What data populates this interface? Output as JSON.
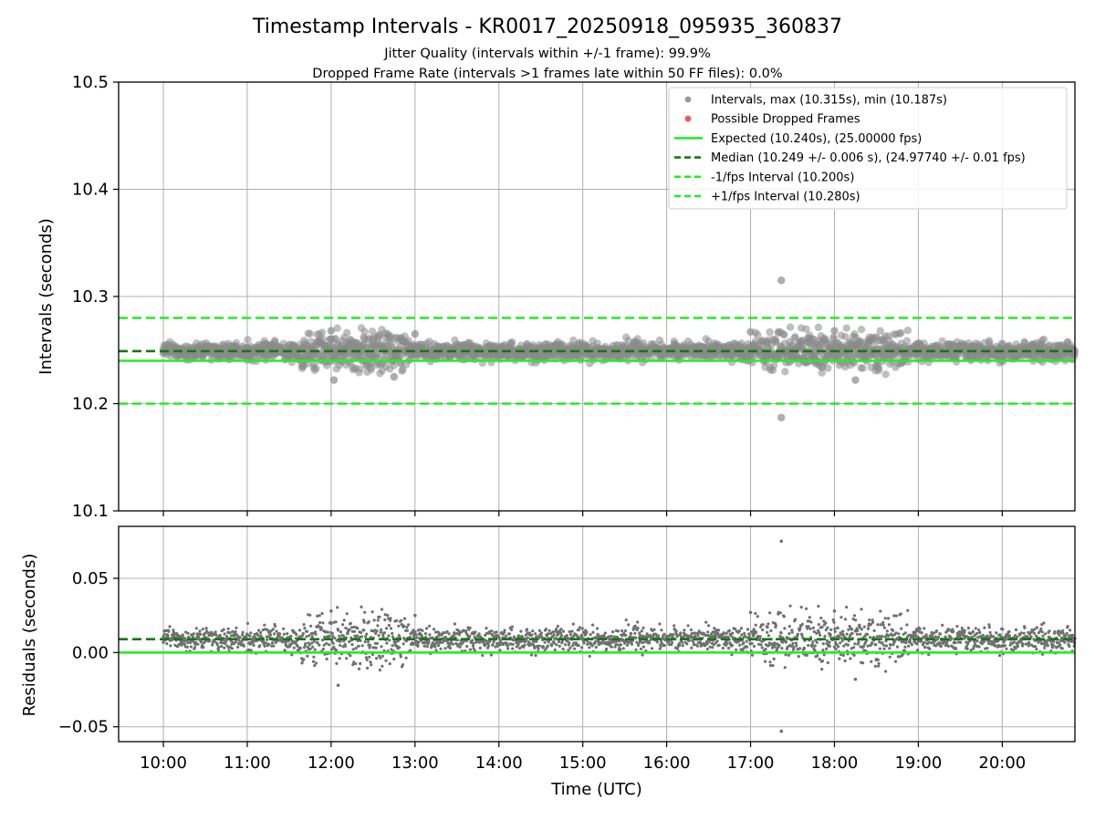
{
  "header": {
    "title": "Timestamp Intervals - KR0017_20250918_095935_360837",
    "subtitle_1": "Jitter Quality (intervals within +/-1 frame): 99.9%",
    "subtitle_2": "Dropped Frame Rate (intervals >1 frames late within 50 FF files): 0.0%"
  },
  "top_axis": {
    "ylabel": "Intervals (seconds)",
    "ylim": [
      10.1,
      10.5
    ],
    "yticks": [
      "10.1",
      "10.2",
      "10.3",
      "10.4",
      "10.5"
    ]
  },
  "bottom_axis": {
    "ylabel": "Residuals (seconds)",
    "ylim": [
      -0.06,
      0.085
    ],
    "yticks": [
      "−0.05",
      "0.00",
      "0.05"
    ],
    "xlabel": "Time (UTC)"
  },
  "xaxis": {
    "xlim": [
      "09:28",
      "20:52"
    ],
    "xticks": [
      "10:00",
      "11:00",
      "12:00",
      "13:00",
      "14:00",
      "15:00",
      "16:00",
      "17:00",
      "18:00",
      "19:00",
      "20:00"
    ]
  },
  "legend": {
    "placement": "upper right",
    "entries": [
      {
        "label": "Intervals, max (10.315s), min (10.187s)",
        "marker": "dot",
        "color": "#9a9a9a"
      },
      {
        "label": "Possible Dropped Frames",
        "marker": "dot",
        "color": "#ee5a5a"
      },
      {
        "label": "Expected (10.240s), (25.00000 fps)",
        "marker": "solid",
        "color": "#22ee22"
      },
      {
        "label": "Median (10.249 +/- 0.006 s), (24.97740 +/- 0.01 fps)",
        "marker": "dashed",
        "color": "#127a12"
      },
      {
        "label": "-1/fps Interval (10.200s)",
        "marker": "dashed",
        "color": "#22ee22"
      },
      {
        "label": "+1/fps Interval (10.280s)",
        "marker": "dashed",
        "color": "#22ee22"
      }
    ]
  },
  "colors": {
    "intervals": "#8a8a8a",
    "residuals": "#707070",
    "expected": "#22ee22",
    "median": "#127a12",
    "grid": "#b0b0b0"
  },
  "chart_data": {
    "type": "scatter",
    "x_range": [
      "10:00",
      "20:52"
    ],
    "series": [
      {
        "name": "Intervals, max (10.315s), min (10.187s)",
        "reference_lines": {
          "expected": 10.24,
          "median": 10.249,
          "minus_1fps": 10.2,
          "plus_1fps": 10.28
        },
        "max": 10.315,
        "min": 10.187,
        "typical_band": [
          10.235,
          10.26
        ],
        "points": [
          {
            "x": "10:00",
            "y": 10.247
          },
          {
            "x": "10:30",
            "y": 10.252
          },
          {
            "x": "11:00",
            "y": 10.249
          },
          {
            "x": "11:30",
            "y": 10.255
          },
          {
            "x": "12:00",
            "y": 10.268
          },
          {
            "x": "12:02",
            "y": 10.222
          },
          {
            "x": "12:30",
            "y": 10.26
          },
          {
            "x": "12:45",
            "y": 10.225
          },
          {
            "x": "13:00",
            "y": 10.265
          },
          {
            "x": "13:30",
            "y": 10.248
          },
          {
            "x": "14:00",
            "y": 10.25
          },
          {
            "x": "15:00",
            "y": 10.249
          },
          {
            "x": "16:00",
            "y": 10.251
          },
          {
            "x": "17:00",
            "y": 10.267
          },
          {
            "x": "17:22",
            "y": 10.315
          },
          {
            "x": "17:22",
            "y": 10.187
          },
          {
            "x": "17:45",
            "y": 10.26
          },
          {
            "x": "18:00",
            "y": 10.268
          },
          {
            "x": "18:15",
            "y": 10.222
          },
          {
            "x": "18:30",
            "y": 10.262
          },
          {
            "x": "19:00",
            "y": 10.25
          },
          {
            "x": "20:00",
            "y": 10.249
          },
          {
            "x": "20:50",
            "y": 10.247
          }
        ]
      },
      {
        "name": "Residuals",
        "reference_lines": {
          "zero": 0.0,
          "median_offset": 0.009
        },
        "max": 0.075,
        "min": -0.053,
        "points": [
          {
            "x": "10:00",
            "y": 0.007
          },
          {
            "x": "11:00",
            "y": 0.009
          },
          {
            "x": "12:00",
            "y": 0.028
          },
          {
            "x": "12:05",
            "y": -0.022
          },
          {
            "x": "13:00",
            "y": 0.025
          },
          {
            "x": "14:00",
            "y": 0.01
          },
          {
            "x": "15:00",
            "y": 0.009
          },
          {
            "x": "16:00",
            "y": 0.011
          },
          {
            "x": "17:00",
            "y": 0.027
          },
          {
            "x": "17:22",
            "y": 0.075
          },
          {
            "x": "17:22",
            "y": -0.053
          },
          {
            "x": "18:00",
            "y": 0.028
          },
          {
            "x": "18:15",
            "y": -0.018
          },
          {
            "x": "19:00",
            "y": 0.01
          },
          {
            "x": "20:00",
            "y": 0.009
          }
        ]
      }
    ],
    "grid": true
  }
}
